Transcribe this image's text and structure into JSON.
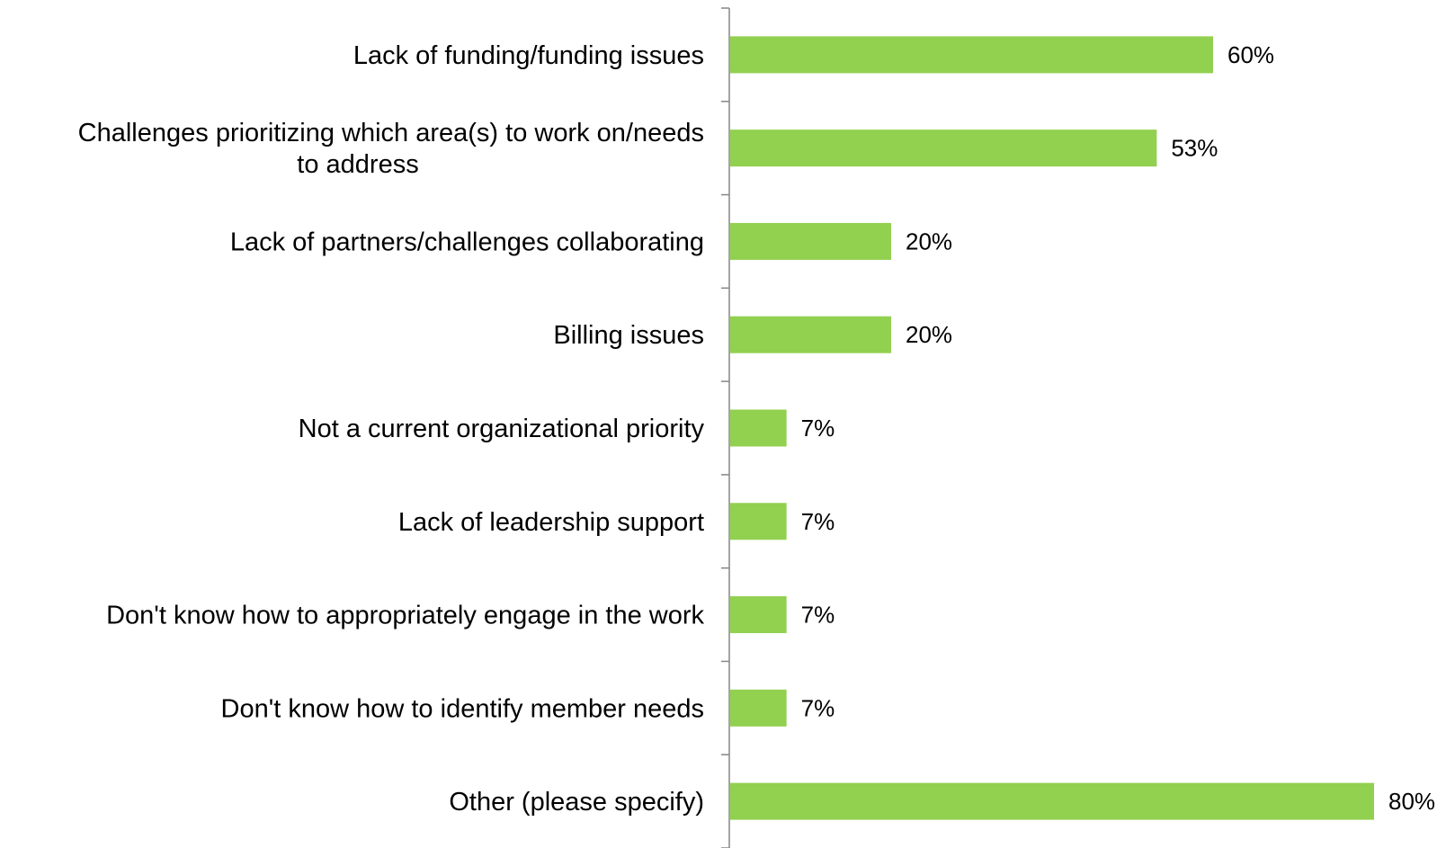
{
  "chart_data": {
    "type": "bar",
    "orientation": "horizontal",
    "categories": [
      [
        "Lack of funding/funding issues"
      ],
      [
        "Challenges prioritizing which area(s) to work on/needs",
        "to address"
      ],
      [
        "Lack of partners/challenges collaborating"
      ],
      [
        "Billing issues"
      ],
      [
        "Not a current organizational priority"
      ],
      [
        "Lack of leadership support"
      ],
      [
        "Don't know how to appropriately engage in the work"
      ],
      [
        "Don't know how to identify member needs"
      ],
      [
        "Other (please specify)"
      ]
    ],
    "values": [
      60,
      53,
      20,
      20,
      7,
      7,
      7,
      7,
      80
    ],
    "value_labels": [
      "60%",
      "53%",
      "20%",
      "20%",
      "7%",
      "7%",
      "7%",
      "7%",
      "80%"
    ],
    "xlim": [
      0,
      80
    ],
    "grid": false,
    "legend": false,
    "bar_color": "#92d050",
    "axis_color": "#868686",
    "text_color": "#000000"
  }
}
